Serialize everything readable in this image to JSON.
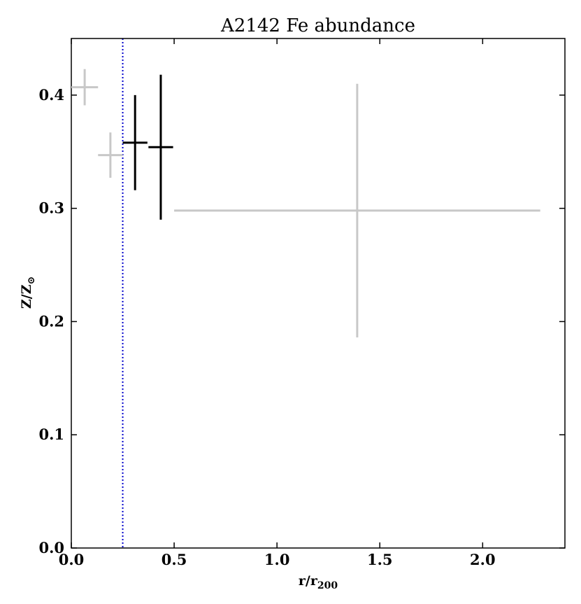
{
  "chart_data": {
    "type": "scatter",
    "title": "A2142 Fe abundance",
    "xlabel": "r/r",
    "xlabel_sub": "200",
    "ylabel": "Z/Z",
    "ylabel_sub": "⊙",
    "xlim": [
      0.0,
      2.4
    ],
    "ylim": [
      0.0,
      0.45
    ],
    "xticks": [
      0.0,
      0.5,
      1.0,
      1.5,
      2.0
    ],
    "xtick_labels": [
      "0.0",
      "0.5",
      "1.0",
      "1.5",
      "2.0"
    ],
    "yticks": [
      0.0,
      0.1,
      0.2,
      0.3,
      0.4
    ],
    "ytick_labels": [
      "0.0",
      "0.1",
      "0.2",
      "0.3",
      "0.4"
    ],
    "grid": false,
    "reference_line": {
      "x": 0.25,
      "color": "#0000cc",
      "style": "dotted"
    },
    "series": [
      {
        "color": "#c8c8c8",
        "points": [
          {
            "x": 0.065,
            "y": 0.407,
            "xerr": [
              0.065,
              0.065
            ],
            "yerr": [
              0.016,
              0.016
            ]
          },
          {
            "x": 0.19,
            "y": 0.347,
            "xerr": [
              0.06,
              0.06
            ],
            "yerr": [
              0.02,
              0.02
            ]
          },
          {
            "x": 1.39,
            "y": 0.298,
            "xerr": [
              0.89,
              0.89
            ],
            "yerr": [
              0.112,
              0.112
            ]
          }
        ]
      },
      {
        "color": "#000000",
        "points": [
          {
            "x": 0.31,
            "y": 0.358,
            "xerr": [
              0.06,
              0.06
            ],
            "yerr": [
              0.042,
              0.042
            ]
          },
          {
            "x": 0.435,
            "y": 0.354,
            "xerr": [
              0.06,
              0.06
            ],
            "yerr": [
              0.064,
              0.064
            ]
          }
        ]
      }
    ]
  }
}
